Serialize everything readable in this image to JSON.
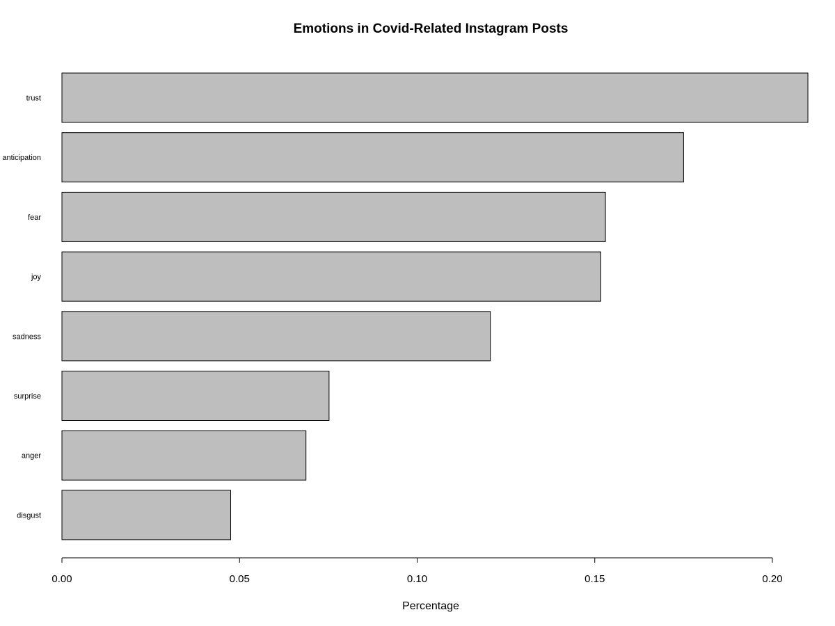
{
  "chart_data": {
    "type": "bar",
    "orientation": "horizontal",
    "title": "Emotions in Covid-Related Instagram Posts",
    "xlabel": "Percentage",
    "ylabel": "",
    "categories": [
      "trust",
      "anticipation",
      "fear",
      "joy",
      "sadness",
      "surprise",
      "anger",
      "disgust"
    ],
    "values": [
      0.21,
      0.175,
      0.153,
      0.1517,
      0.1206,
      0.0752,
      0.0687,
      0.0475
    ],
    "xlim": [
      0,
      0.21
    ],
    "xticks": [
      0.0,
      0.05,
      0.1,
      0.15,
      0.2
    ],
    "xtick_labels": [
      "0.00",
      "0.05",
      "0.10",
      "0.15",
      "0.20"
    ],
    "bar_color": "#bebebe",
    "grid": false
  }
}
